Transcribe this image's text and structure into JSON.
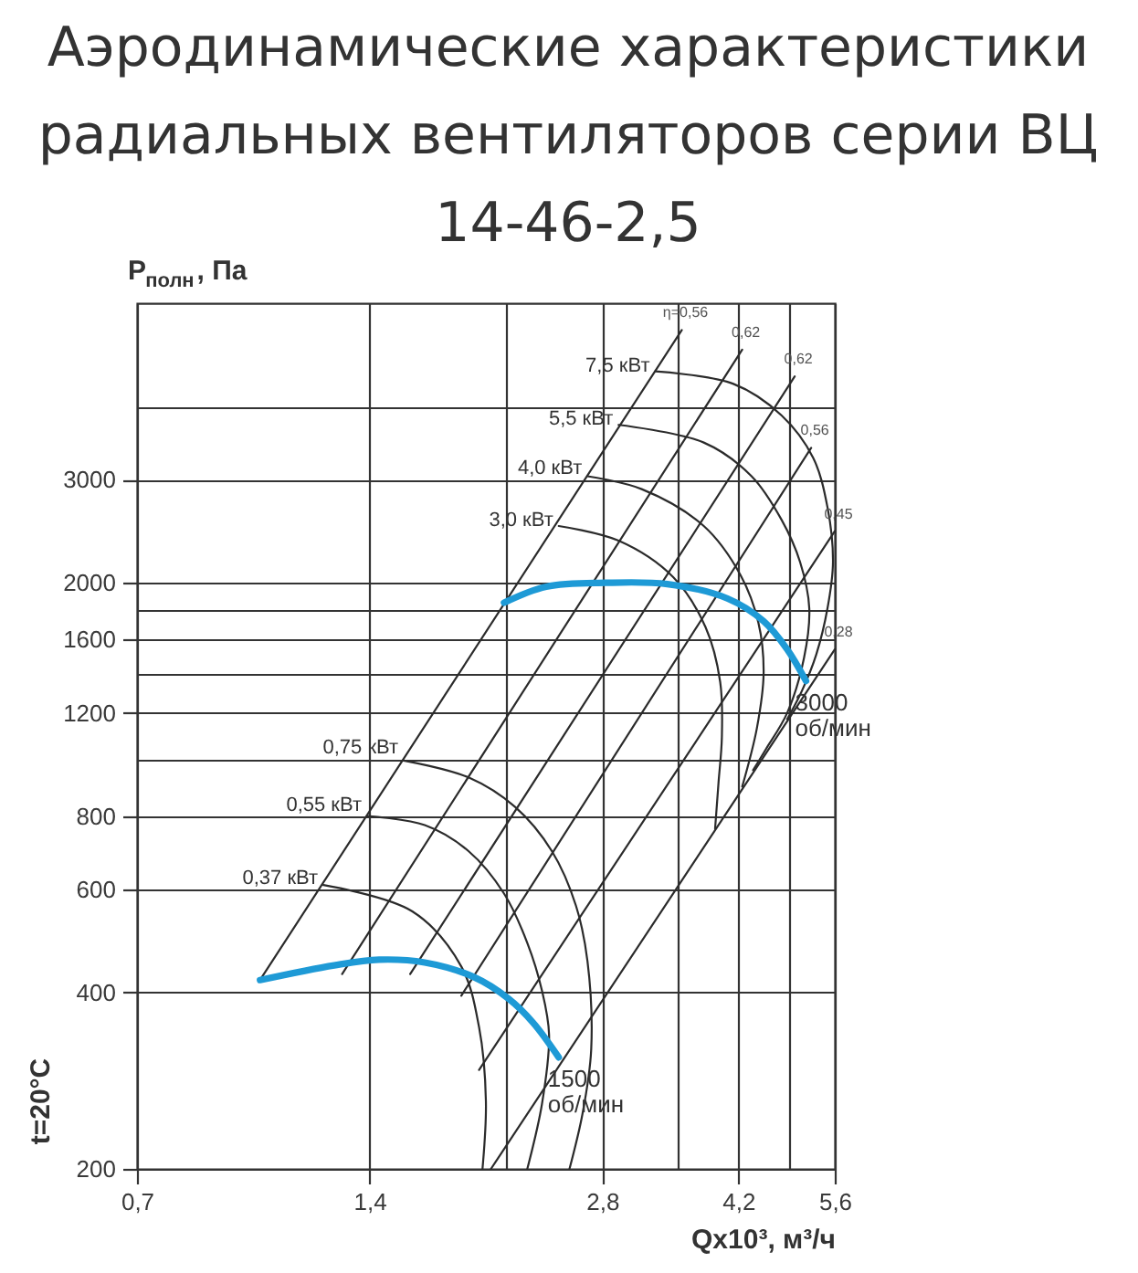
{
  "chart_data": {
    "type": "line",
    "title": "Аэродинамические характеристики\nрадиальных вентиляторов серии ВЦ\n14-46-2,5",
    "xlabel": "Qx10³, м³/ч",
    "ylabel": "P$_{полн}$, Па",
    "log": "xy",
    "grid": true,
    "xlim": [
      0.7,
      5.6
    ],
    "ylim": [
      200,
      6000
    ],
    "xticks": [
      {
        "value": 0.7,
        "label": "0,7"
      },
      {
        "value": 1.4,
        "label": "1,4"
      },
      {
        "value": 2.1,
        "label": null
      },
      {
        "value": 2.8,
        "label": "2,8"
      },
      {
        "value": 3.5,
        "label": null
      },
      {
        "value": 4.2,
        "label": "4,2"
      },
      {
        "value": 4.9,
        "label": null
      },
      {
        "value": 5.6,
        "label": "5,6"
      }
    ],
    "yticks": [
      200,
      400,
      600,
      800,
      {
        "value": 1000,
        "label": null
      },
      1200,
      {
        "value": 1400,
        "label": null
      },
      1600,
      {
        "value": 1800,
        "label": null
      },
      2000,
      3000,
      {
        "value": 4000,
        "label": null
      }
    ],
    "series": [
      {
        "color": "#2b2b2b",
        "x": [
          1.01,
          3.55
        ],
        "values": [
          420,
          5400
        ]
      },
      {
        "color": "#2b2b2b",
        "x": [
          1.29,
          4.25
        ],
        "values": [
          430,
          5000
        ]
      },
      {
        "color": "#2b2b2b",
        "x": [
          1.58,
          4.97
        ],
        "values": [
          430,
          4500
        ]
      },
      {
        "color": "#2b2b2b",
        "x": [
          1.84,
          5.22
        ],
        "values": [
          395,
          3400
        ]
      },
      {
        "color": "#2b2b2b",
        "x": [
          1.94,
          5.6
        ],
        "values": [
          295,
          2450
        ]
      },
      {
        "color": "#2b2b2b",
        "x": [
          2.01,
          5.6
        ],
        "values": [
          200,
          1540
        ]
      },
      {
        "color": "#2b2b2b",
        "x": [
          1.22,
          1.59,
          1.84,
          1.94,
          1.98,
          1.96
        ],
        "values": [
          610,
          550,
          443,
          349,
          261,
          200
        ]
      },
      {
        "color": "#2b2b2b",
        "x": [
          1.39,
          1.65,
          1.88,
          2.09,
          2.24,
          2.34,
          2.39,
          2.34,
          2.24
        ],
        "values": [
          800,
          772,
          697,
          590,
          486,
          403,
          339,
          258,
          200
        ]
      },
      {
        "color": "#2b2b2b",
        "x": [
          1.55,
          1.88,
          2.16,
          2.41,
          2.59,
          2.68,
          2.71,
          2.64,
          2.54
        ],
        "values": [
          995,
          931,
          829,
          697,
          562,
          452,
          320,
          248,
          200
        ]
      },
      {
        "color": "#2b2b2b",
        "x": [
          2.46,
          2.94,
          3.46,
          3.81,
          3.98,
          4.0,
          3.96,
          3.92
        ],
        "values": [
          2500,
          2360,
          2045,
          1680,
          1355,
          1090,
          911,
          761
        ]
      },
      {
        "color": "#2b2b2b",
        "x": [
          2.68,
          3.15,
          3.79,
          4.23,
          4.46,
          4.53,
          4.44,
          4.25
        ],
        "values": [
          3040,
          2890,
          2500,
          2060,
          1710,
          1405,
          1130,
          898
        ]
      },
      {
        "color": "#2b2b2b",
        "x": [
          2.94,
          3.79,
          4.37,
          4.78,
          5.05,
          5.19,
          5.11,
          4.86,
          4.56,
          4.39
        ],
        "values": [
          3720,
          3470,
          3040,
          2560,
          2170,
          1810,
          1490,
          1200,
          1040,
          958
        ]
      },
      {
        "color": "#2b2b2b",
        "x": [
          3.28,
          4.14,
          4.78,
          5.25,
          5.48,
          5.57,
          5.48,
          5.3,
          5.08,
          4.86
        ],
        "values": [
          4590,
          4370,
          3860,
          3270,
          2690,
          2170,
          1810,
          1510,
          1310,
          1170
        ]
      },
      {
        "name": "3000\nоб/мин",
        "color": "#1e9ad6",
        "x": [
          2.09,
          2.37,
          2.83,
          3.4,
          4.07,
          4.53,
          4.86,
          5.14
        ],
        "values": [
          1850,
          1970,
          2000,
          1990,
          1880,
          1720,
          1540,
          1360
        ]
      },
      {
        "name": "1500\nоб/мин",
        "color": "#1e9ad6",
        "x": [
          1.01,
          1.26,
          1.44,
          1.65,
          1.91,
          2.12,
          2.28,
          2.46
        ],
        "values": [
          420,
          445,
          455,
          450,
          425,
          390,
          355,
          310
        ]
      }
    ],
    "annotations": [
      {
        "text": "η=0,56",
        "x": 3.55,
        "y": 5400
      },
      {
        "text": "0,62",
        "x": 4.25,
        "y": 5000
      },
      {
        "text": "0,62",
        "x": 4.97,
        "y": 4500
      },
      {
        "text": "0,56",
        "x": 5.22,
        "y": 3400
      },
      {
        "text": "0,45",
        "x": 5.6,
        "y": 2450
      },
      {
        "text": "0,28",
        "x": 5.6,
        "y": 1540
      },
      {
        "text": "7,5 кВт",
        "x": 3.28,
        "y": 4590
      },
      {
        "text": "5,5 кВт",
        "x": 2.94,
        "y": 3720
      },
      {
        "text": "4,0 кВт",
        "x": 2.68,
        "y": 3040
      },
      {
        "text": "3,0 кВт",
        "x": 2.46,
        "y": 2500
      },
      {
        "text": "0,75 кВт",
        "x": 1.55,
        "y": 995
      },
      {
        "text": "0,55 кВт",
        "x": 1.39,
        "y": 800
      },
      {
        "text": "0,37 кВт",
        "x": 1.22,
        "y": 610
      },
      "t=20°C"
    ]
  }
}
